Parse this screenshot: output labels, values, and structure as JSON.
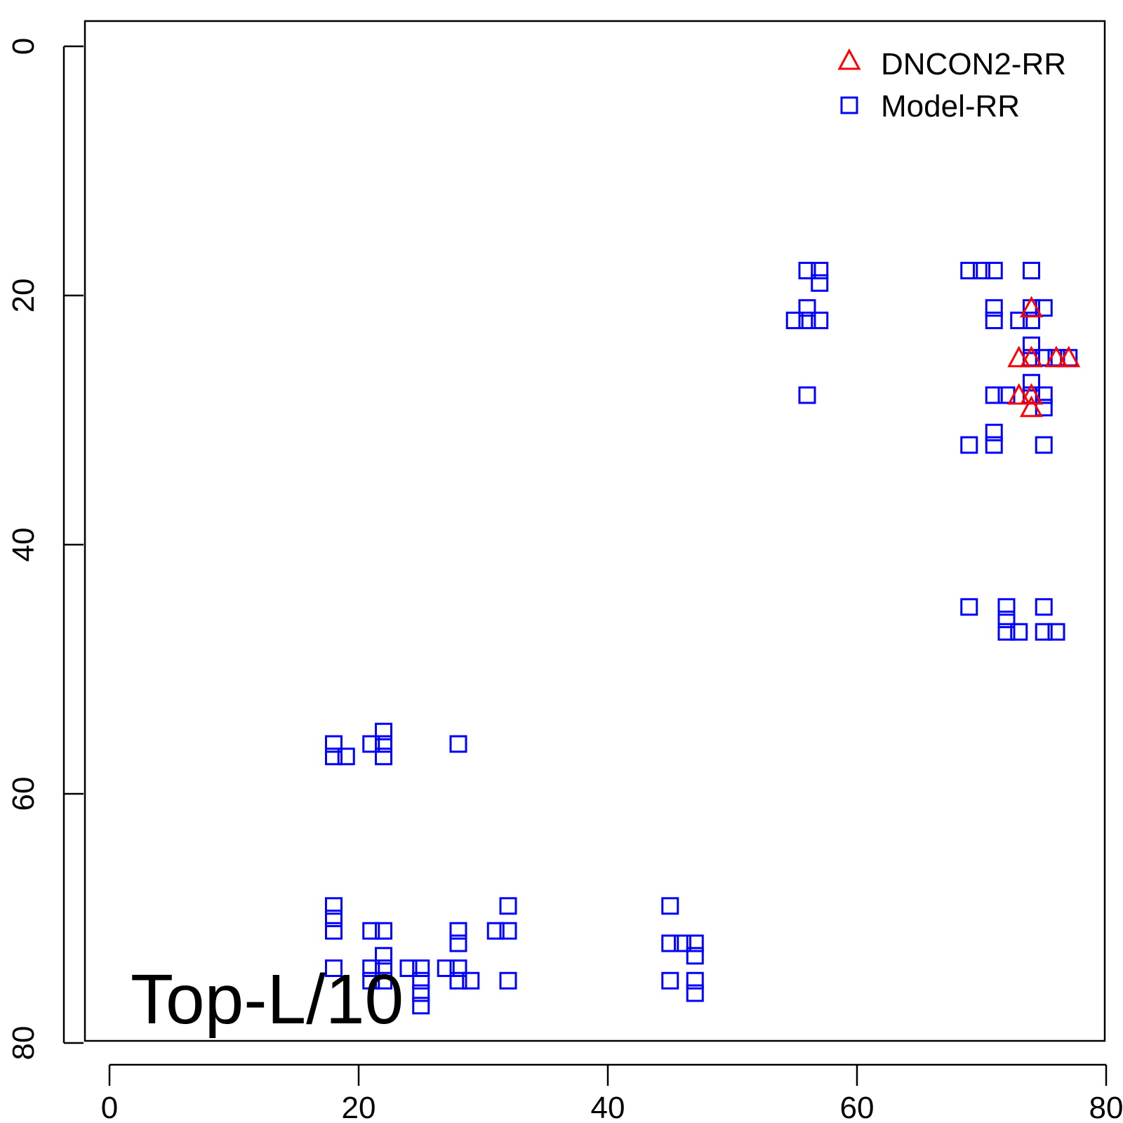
{
  "chart_data": {
    "type": "scatter",
    "title": "",
    "xlabel": "",
    "ylabel": "",
    "xlim": [
      0,
      80
    ],
    "ylim": [
      0,
      80
    ],
    "y_inverted": true,
    "x_ticks": [
      0,
      20,
      40,
      60,
      80
    ],
    "y_ticks": [
      0,
      20,
      40,
      60,
      80
    ],
    "grid": false,
    "legend_position": "top-right",
    "annotation": "Top-L/10",
    "series": [
      {
        "name": "DNCON2-RR",
        "marker": "triangle",
        "color": "#ff0000",
        "points": [
          [
            74,
            21
          ],
          [
            73,
            25
          ],
          [
            74,
            25
          ],
          [
            76,
            25
          ],
          [
            77,
            25
          ],
          [
            73,
            28
          ],
          [
            74,
            28
          ],
          [
            74,
            29
          ]
        ]
      },
      {
        "name": "Model-RR",
        "marker": "square",
        "color": "#0000ff",
        "points": [
          [
            56,
            18
          ],
          [
            57,
            18
          ],
          [
            57,
            19
          ],
          [
            56,
            21
          ],
          [
            55,
            22
          ],
          [
            56,
            22
          ],
          [
            57,
            22
          ],
          [
            56,
            28
          ],
          [
            69,
            18
          ],
          [
            70,
            18
          ],
          [
            71,
            18
          ],
          [
            74,
            18
          ],
          [
            71,
            21
          ],
          [
            74,
            21
          ],
          [
            75,
            21
          ],
          [
            71,
            22
          ],
          [
            73,
            22
          ],
          [
            74,
            22
          ],
          [
            74,
            24
          ],
          [
            74,
            25
          ],
          [
            75,
            25
          ],
          [
            76,
            25
          ],
          [
            77,
            25
          ],
          [
            74,
            27
          ],
          [
            71,
            28
          ],
          [
            72,
            28
          ],
          [
            74,
            28
          ],
          [
            75,
            28
          ],
          [
            75,
            29
          ],
          [
            71,
            31
          ],
          [
            69,
            32
          ],
          [
            71,
            32
          ],
          [
            75,
            32
          ],
          [
            69,
            45
          ],
          [
            72,
            45
          ],
          [
            72,
            46
          ],
          [
            72,
            47
          ],
          [
            73,
            47
          ],
          [
            75,
            45
          ],
          [
            75,
            47
          ],
          [
            76,
            47
          ],
          [
            18,
            56
          ],
          [
            18,
            57
          ],
          [
            19,
            57
          ],
          [
            21,
            56
          ],
          [
            22,
            55
          ],
          [
            22,
            56
          ],
          [
            22,
            57
          ],
          [
            28,
            56
          ],
          [
            18,
            69
          ],
          [
            18,
            70
          ],
          [
            18,
            71
          ],
          [
            18,
            74
          ],
          [
            21,
            71
          ],
          [
            22,
            71
          ],
          [
            22,
            73
          ],
          [
            21,
            74
          ],
          [
            22,
            74
          ],
          [
            21,
            75
          ],
          [
            22,
            75
          ],
          [
            24,
            74
          ],
          [
            25,
            74
          ],
          [
            25,
            75
          ],
          [
            25,
            76
          ],
          [
            25,
            77
          ],
          [
            27,
            74
          ],
          [
            28,
            74
          ],
          [
            28,
            75
          ],
          [
            29,
            75
          ],
          [
            28,
            71
          ],
          [
            28,
            72
          ],
          [
            31,
            71
          ],
          [
            32,
            71
          ],
          [
            32,
            69
          ],
          [
            32,
            75
          ],
          [
            45,
            69
          ],
          [
            45,
            72
          ],
          [
            46,
            72
          ],
          [
            47,
            72
          ],
          [
            47,
            73
          ],
          [
            45,
            75
          ],
          [
            47,
            75
          ],
          [
            47,
            76
          ]
        ]
      }
    ]
  }
}
